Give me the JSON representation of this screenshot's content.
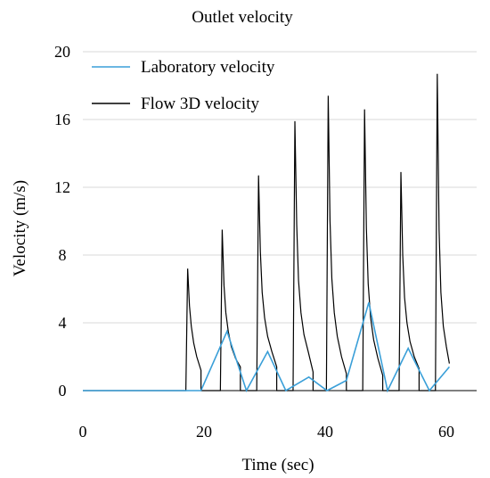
{
  "chart_data": {
    "type": "line",
    "title": "Outlet velocity",
    "xlabel": "Time (sec)",
    "ylabel": "Velocity (m/s)",
    "xlim": [
      0,
      65
    ],
    "ylim": [
      0,
      20
    ],
    "xticks": [
      0,
      20,
      40,
      60
    ],
    "yticks": [
      0,
      4,
      8,
      12,
      16,
      20
    ],
    "grid": "horizontal",
    "legend_position": "top-left",
    "series": [
      {
        "name": "Laboratory velocity",
        "color": "#3a9fd8",
        "x": [
          0,
          19.5,
          23.8,
          27,
          30.5,
          33.5,
          37.3,
          40.3,
          43.5,
          47.2,
          50.3,
          53.7,
          57.2,
          60.5
        ],
        "y": [
          0,
          0,
          3.5,
          0,
          2.3,
          0,
          0.8,
          0,
          0.6,
          5.2,
          0,
          2.5,
          0,
          1.4
        ]
      },
      {
        "name": "Flow 3D velocity",
        "color": "#000000",
        "x": [
          0,
          17.0,
          17.3,
          17.6,
          17.9,
          18.3,
          18.8,
          19.5,
          19.5,
          22.7,
          23.0,
          23.3,
          23.6,
          24.0,
          24.5,
          25.2,
          26.0,
          26.0,
          28.7,
          29.0,
          29.3,
          29.6,
          30.0,
          30.5,
          31.2,
          32.0,
          32.0,
          34.7,
          35.0,
          35.3,
          35.6,
          36.0,
          36.5,
          37.2,
          38.0,
          38.0,
          40.2,
          40.5,
          40.8,
          41.1,
          41.5,
          42.0,
          42.7,
          43.5,
          43.5,
          46.2,
          46.5,
          46.8,
          47.1,
          47.5,
          48.0,
          48.7,
          49.5,
          49.5,
          52.2,
          52.5,
          52.8,
          53.1,
          53.5,
          54.0,
          54.7,
          55.5,
          55.5,
          58.2,
          58.5,
          58.8,
          59.1,
          59.5,
          60.0,
          60.5
        ],
        "y": [
          0,
          0,
          7.2,
          5.0,
          3.8,
          2.8,
          2.0,
          1.2,
          0,
          0,
          9.5,
          6.2,
          4.6,
          3.5,
          2.6,
          1.9,
          1.4,
          0,
          0,
          12.7,
          8.2,
          5.8,
          4.3,
          3.2,
          2.3,
          1.4,
          0,
          0,
          15.9,
          9.8,
          6.5,
          4.6,
          3.3,
          2.3,
          1.1,
          0,
          0,
          17.4,
          10.0,
          6.6,
          4.6,
          3.2,
          2.0,
          1.0,
          0,
          0,
          16.6,
          9.6,
          6.3,
          4.3,
          3.0,
          1.9,
          0.9,
          0,
          0,
          12.9,
          8.0,
          5.5,
          4.0,
          2.9,
          2.0,
          1.3,
          0,
          0,
          18.7,
          9.5,
          5.8,
          3.8,
          2.6,
          1.6
        ]
      }
    ]
  }
}
